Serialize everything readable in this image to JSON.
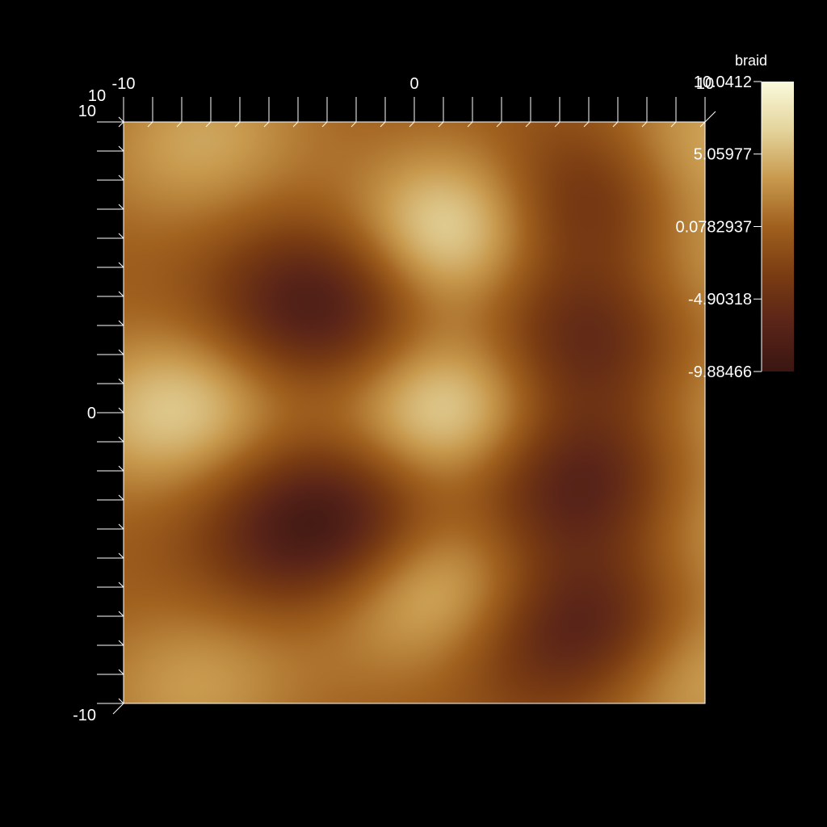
{
  "chart_data": {
    "type": "heatmap",
    "title": "",
    "xlabel": "",
    "ylabel": "",
    "xlim": [
      -10,
      10
    ],
    "ylim": [
      -10,
      10
    ],
    "x_ticks": [
      {
        "value": -10,
        "label": "-10"
      },
      {
        "value": 0,
        "label": "0"
      },
      {
        "value": 10,
        "label": "10"
      }
    ],
    "y_ticks": [
      {
        "value": -10,
        "label": "-10"
      },
      {
        "value": 0,
        "label": "0"
      },
      {
        "value": 10,
        "label": "10"
      }
    ],
    "z_corner_label": "10",
    "colorbar": {
      "title": "braid",
      "range": [
        -9.88466,
        10.0412
      ],
      "ticks": [
        {
          "value": 10.0412,
          "label": "10.0412"
        },
        {
          "value": 5.05977,
          "label": "5.05977"
        },
        {
          "value": 0.0782937,
          "label": "0.0782937"
        },
        {
          "value": -4.90318,
          "label": "-4.90318"
        },
        {
          "value": -9.88466,
          "label": "-9.88466"
        }
      ],
      "colors": [
        "#3a1612",
        "#5a2418",
        "#7a3c12",
        "#a0601e",
        "#c89a4e",
        "#e4d49c",
        "#fafadc"
      ]
    },
    "field_peaks": [
      {
        "x": 1.2,
        "y": 6.2,
        "value": 9.5
      },
      {
        "x": -8.0,
        "y": 0.2,
        "value": 7.0
      },
      {
        "x": 1.3,
        "y": 0.1,
        "value": 8.5
      },
      {
        "x": 0.8,
        "y": -6.0,
        "value": 6.5
      },
      {
        "x": -7.3,
        "y": 9.3,
        "value": 4.5
      },
      {
        "x": 9.5,
        "y": 9.2,
        "value": 5.5
      },
      {
        "x": 10.0,
        "y": 5.0,
        "value": 4.0
      },
      {
        "x": 10.0,
        "y": 0.0,
        "value": 4.0
      },
      {
        "x": 10.0,
        "y": -4.2,
        "value": 4.0
      },
      {
        "x": 9.5,
        "y": -9.0,
        "value": 5.0
      },
      {
        "x": -7.5,
        "y": -9.3,
        "value": 4.0
      },
      {
        "x": -3.2,
        "y": 3.8,
        "value": -9.0
      },
      {
        "x": -3.2,
        "y": -3.8,
        "value": -9.5
      },
      {
        "x": 5.8,
        "y": 7.4,
        "value": -7.0
      },
      {
        "x": 5.8,
        "y": 2.4,
        "value": -7.0
      },
      {
        "x": 5.8,
        "y": -2.4,
        "value": -8.0
      },
      {
        "x": 5.8,
        "y": -7.4,
        "value": -8.0
      }
    ]
  }
}
